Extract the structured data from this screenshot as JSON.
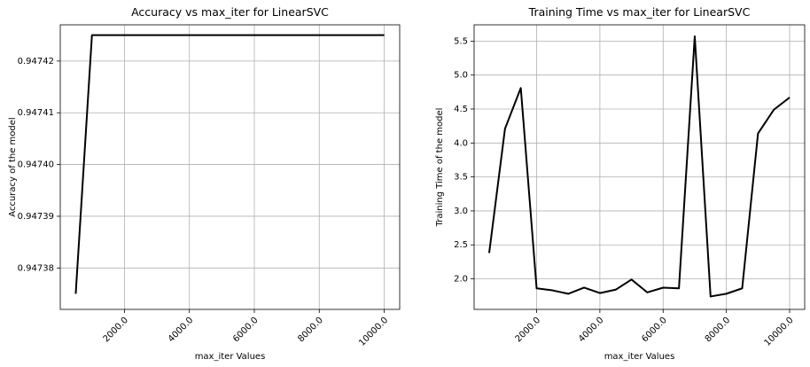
{
  "chart_data": [
    {
      "type": "line",
      "title": "Accuracy vs max_iter for LinearSVC",
      "xlabel": "max_iter Values",
      "ylabel": "Accuracy of the model",
      "grid": true,
      "color": "#000000",
      "xlim": [
        24,
        10476
      ],
      "ylim": [
        0.947372,
        0.947427
      ],
      "xticks": [
        2000,
        4000,
        6000,
        8000,
        10000
      ],
      "xtick_labels": [
        "2000.0",
        "4000.0",
        "6000.0",
        "8000.0",
        "10000.0"
      ],
      "yticks": [
        0.94738,
        0.94739,
        0.9474,
        0.94741,
        0.94742
      ],
      "ytick_labels": [
        "0.94738",
        "0.94739",
        "0.94740",
        "0.94741",
        "0.94742"
      ],
      "x": [
        500,
        1000,
        1500,
        2000,
        2500,
        3000,
        3500,
        4000,
        4500,
        5000,
        5500,
        6000,
        6500,
        7000,
        7500,
        8000,
        8500,
        9000,
        9500,
        10000
      ],
      "y": [
        0.947375,
        0.947425,
        0.947425,
        0.947425,
        0.947425,
        0.947425,
        0.947425,
        0.947425,
        0.947425,
        0.947425,
        0.947425,
        0.947425,
        0.947425,
        0.947425,
        0.947425,
        0.947425,
        0.947425,
        0.947425,
        0.947425,
        0.947425
      ]
    },
    {
      "type": "line",
      "title": "Training Time vs max_iter for LinearSVC",
      "xlabel": "max_iter Values",
      "ylabel": "Training Time of the model",
      "grid": true,
      "color": "#000000",
      "xlim": [
        24,
        10476
      ],
      "ylim": [
        1.55,
        5.74
      ],
      "xticks": [
        2000,
        4000,
        6000,
        8000,
        10000
      ],
      "xtick_labels": [
        "2000.0",
        "4000.0",
        "6000.0",
        "8000.0",
        "10000.0"
      ],
      "yticks": [
        2.0,
        2.5,
        3.0,
        3.5,
        4.0,
        4.5,
        5.0,
        5.5
      ],
      "ytick_labels": [
        "2.0",
        "2.5",
        "3.0",
        "3.5",
        "4.0",
        "4.5",
        "5.0",
        "5.5"
      ],
      "x": [
        500,
        1000,
        1500,
        2000,
        2500,
        3000,
        3500,
        4000,
        4500,
        5000,
        5500,
        6000,
        6500,
        7000,
        7500,
        8000,
        8500,
        9000,
        9500,
        10000
      ],
      "y": [
        2.38,
        4.21,
        4.81,
        1.86,
        1.83,
        1.78,
        1.87,
        1.79,
        1.84,
        1.99,
        1.8,
        1.87,
        1.86,
        5.57,
        1.74,
        1.78,
        1.86,
        4.14,
        4.49,
        4.67
      ]
    }
  ]
}
